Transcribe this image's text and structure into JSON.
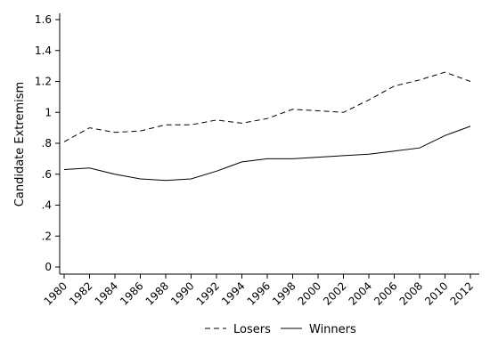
{
  "chart_data": {
    "type": "line",
    "title": "",
    "xlabel": "",
    "ylabel": "Candidate Extremism",
    "x": [
      "1980",
      "1982",
      "1984",
      "1986",
      "1988",
      "1990",
      "1992",
      "1994",
      "1996",
      "1998",
      "2000",
      "2002",
      "2004",
      "2006",
      "2008",
      "2010",
      "2012"
    ],
    "yticks": [
      "0",
      ".2",
      ".4",
      ".6",
      ".8",
      "1",
      "1.2",
      "1.4",
      "1.6"
    ],
    "ylim": [
      0,
      1.6
    ],
    "grid": false,
    "legend_position": "bottom",
    "series": [
      {
        "name": "Losers",
        "style": "dashed",
        "color": "#000000",
        "values": [
          0.81,
          0.9,
          0.87,
          0.88,
          0.92,
          0.92,
          0.95,
          0.93,
          0.96,
          1.02,
          1.01,
          1.0,
          1.08,
          1.17,
          1.21,
          1.26,
          1.2
        ]
      },
      {
        "name": "Winners",
        "style": "solid",
        "color": "#000000",
        "values": [
          0.63,
          0.64,
          0.6,
          0.57,
          0.56,
          0.57,
          0.62,
          0.68,
          0.7,
          0.7,
          0.71,
          0.72,
          0.73,
          0.75,
          0.77,
          0.85,
          0.91
        ]
      }
    ]
  }
}
